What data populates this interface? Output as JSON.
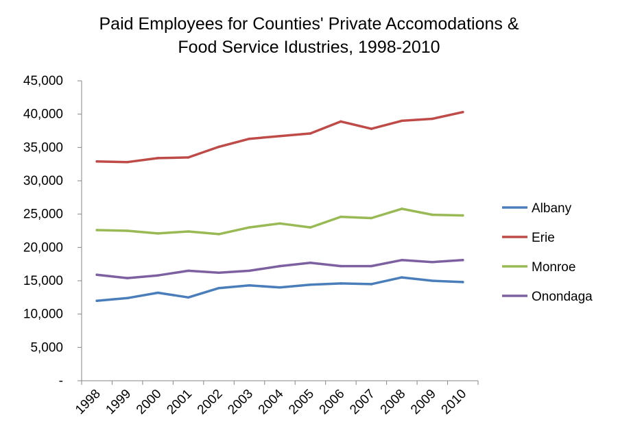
{
  "chart_data": {
    "type": "line",
    "title_lines": [
      "Paid Employees for Counties' Private Accomodations &",
      "Food Service Idustries, 1998-2010"
    ],
    "xlabel": "",
    "ylabel": "",
    "categories": [
      "1998",
      "1999",
      "2000",
      "2001",
      "2002",
      "2003",
      "2004",
      "2005",
      "2006",
      "2007",
      "2008",
      "2009",
      "2010"
    ],
    "ylim": [
      0,
      45000
    ],
    "yticks": [
      {
        "value": 0,
        "label": "-"
      },
      {
        "value": 5000,
        "label": "5,000"
      },
      {
        "value": 10000,
        "label": "10,000"
      },
      {
        "value": 15000,
        "label": "15,000"
      },
      {
        "value": 20000,
        "label": "20,000"
      },
      {
        "value": 25000,
        "label": "25,000"
      },
      {
        "value": 30000,
        "label": "30,000"
      },
      {
        "value": 35000,
        "label": "35,000"
      },
      {
        "value": 40000,
        "label": "40,000"
      },
      {
        "value": 45000,
        "label": "45,000"
      }
    ],
    "grid": false,
    "legend_position": "right",
    "series": [
      {
        "name": "Albany",
        "color": "#4a7ebb",
        "values": [
          12000,
          12400,
          13200,
          12500,
          13900,
          14300,
          14000,
          14400,
          14600,
          14500,
          15500,
          15000,
          14800
        ]
      },
      {
        "name": "Erie",
        "color": "#be4b48",
        "values": [
          32900,
          32800,
          33400,
          33500,
          35100,
          36300,
          36700,
          37100,
          38900,
          37800,
          39000,
          39300,
          40300
        ]
      },
      {
        "name": "Monroe",
        "color": "#98b954",
        "values": [
          22600,
          22500,
          22100,
          22400,
          22000,
          23000,
          23600,
          23000,
          24600,
          24400,
          25800,
          24900,
          24800
        ]
      },
      {
        "name": "Onondaga",
        "color": "#7d60a0",
        "values": [
          15900,
          15400,
          15800,
          16500,
          16200,
          16500,
          17200,
          17700,
          17200,
          17200,
          18100,
          17800,
          18100
        ]
      }
    ]
  }
}
